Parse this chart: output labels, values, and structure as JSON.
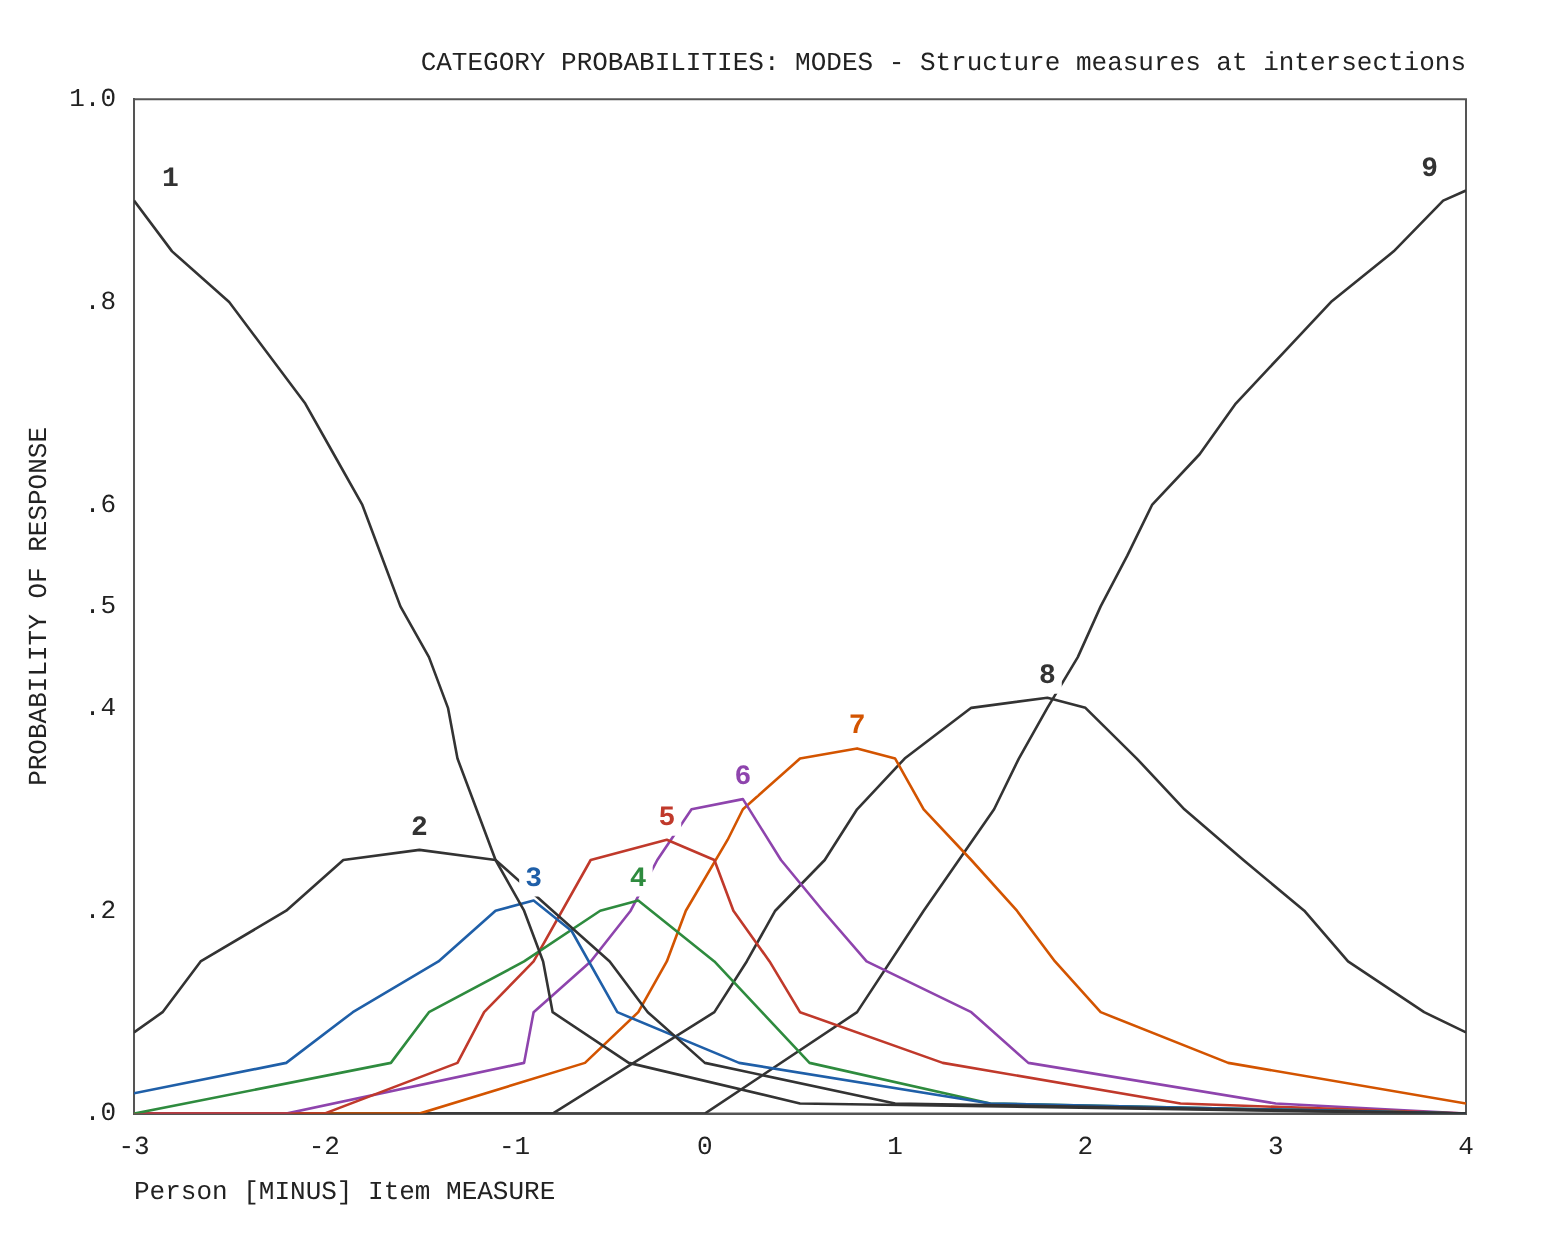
{
  "chart_data": {
    "type": "line",
    "title": "CATEGORY PROBABILITIES: MODES - Structure measures at intersections",
    "xlabel": "Person [MINUS] Item MEASURE",
    "ylabel": "PROBABILITY OF RESPONSE",
    "xlim": [
      -3,
      4
    ],
    "xticks": [
      -3,
      -2,
      -1,
      0,
      1,
      2,
      3,
      4
    ],
    "ylim": [
      0,
      1
    ],
    "yticks": [
      {
        "value": 0,
        "label": ".0"
      },
      {
        "value": 0.2,
        "label": ".2"
      },
      {
        "value": 0.4,
        "label": ".4"
      },
      {
        "value": 0.5,
        "label": ".5"
      },
      {
        "value": 0.6,
        "label": ".6"
      },
      {
        "value": 0.8,
        "label": ".8"
      },
      {
        "value": 1,
        "label": "1.0"
      }
    ],
    "grid": false,
    "legend": false,
    "marker": "none",
    "line_style": "solid",
    "series": [
      {
        "name": "1",
        "color": "#333333",
        "x": [
          -3,
          -2.8,
          -2.5,
          -2.3,
          -2.1,
          -1.95,
          -1.8,
          -1.7,
          -1.6,
          -1.45,
          -1.35,
          -1.3,
          -1.2,
          -1.1,
          -0.95,
          -0.85,
          -0.8,
          -0.4,
          0.5,
          4
        ],
        "values": [
          0.9,
          0.85,
          0.8,
          0.75,
          0.7,
          0.65,
          0.6,
          0.55,
          0.5,
          0.45,
          0.4,
          0.35,
          0.3,
          0.25,
          0.2,
          0.15,
          0.1,
          0.05,
          0.01,
          0
        ]
      },
      {
        "name": "2",
        "color": "#333333",
        "x": [
          -3,
          -2.85,
          -2.65,
          -2.2,
          -1.9,
          -1.5,
          -1.1,
          -0.8,
          -0.5,
          -0.3,
          0,
          1,
          4
        ],
        "values": [
          0.08,
          0.1,
          0.15,
          0.2,
          0.25,
          0.26,
          0.25,
          0.2,
          0.15,
          0.1,
          0.05,
          0.01,
          0
        ]
      },
      {
        "name": "3",
        "color": "#1f5fa8",
        "x": [
          -3,
          -2.2,
          -1.85,
          -1.4,
          -1.1,
          -0.9,
          -0.7,
          -0.46,
          0.18,
          1.5,
          4
        ],
        "values": [
          0.02,
          0.05,
          0.1,
          0.15,
          0.2,
          0.21,
          0.18,
          0.1,
          0.05,
          0.01,
          0
        ]
      },
      {
        "name": "4",
        "color": "#2e8b3e",
        "x": [
          -3,
          -1.65,
          -1.45,
          -0.95,
          -0.55,
          -0.35,
          0.05,
          0.3,
          0.55,
          1.5,
          4
        ],
        "values": [
          0,
          0.05,
          0.1,
          0.15,
          0.2,
          0.21,
          0.15,
          0.1,
          0.05,
          0.01,
          0
        ]
      },
      {
        "name": "5",
        "color": "#c0392b",
        "x": [
          -3,
          -2,
          -1.3,
          -1.16,
          -0.9,
          -0.6,
          -0.2,
          0.05,
          0.15,
          0.34,
          0.5,
          1.25,
          2.5,
          4
        ],
        "values": [
          0,
          0,
          0.05,
          0.1,
          0.15,
          0.25,
          0.27,
          0.25,
          0.2,
          0.15,
          0.1,
          0.05,
          0.01,
          0
        ]
      },
      {
        "name": "6",
        "color": "#8e44ad",
        "x": [
          -3,
          -2.2,
          -0.95,
          -0.9,
          -0.6,
          -0.39,
          -0.25,
          -0.07,
          0.2,
          0.4,
          0.62,
          0.85,
          1.4,
          1.7,
          3,
          4
        ],
        "values": [
          0,
          0,
          0.05,
          0.1,
          0.15,
          0.2,
          0.25,
          0.3,
          0.31,
          0.25,
          0.2,
          0.15,
          0.1,
          0.05,
          0.01,
          0
        ]
      },
      {
        "name": "7",
        "color": "#d35400",
        "x": [
          -3,
          -1.5,
          -0.63,
          -0.35,
          -0.2,
          -0.1,
          0.12,
          0.2,
          0.5,
          0.8,
          1,
          1.15,
          1.4,
          1.64,
          1.84,
          2.08,
          2.75,
          4
        ],
        "values": [
          0,
          0,
          0.05,
          0.1,
          0.15,
          0.2,
          0.27,
          0.3,
          0.35,
          0.36,
          0.35,
          0.3,
          0.25,
          0.2,
          0.15,
          0.1,
          0.05,
          0.01
        ]
      },
      {
        "name": "8",
        "color": "#333333",
        "x": [
          -3,
          -0.8,
          0.05,
          0.22,
          0.37,
          0.63,
          0.8,
          1.05,
          1.4,
          1.8,
          2,
          2.27,
          2.52,
          2.83,
          3.15,
          3.38,
          3.78,
          4
        ],
        "values": [
          0,
          0,
          0.1,
          0.15,
          0.2,
          0.25,
          0.3,
          0.35,
          0.4,
          0.41,
          0.4,
          0.35,
          0.3,
          0.25,
          0.2,
          0.15,
          0.1,
          0.08
        ]
      },
      {
        "name": "9",
        "color": "#333333",
        "x": [
          -3,
          0,
          0.8,
          1.15,
          1.52,
          1.65,
          1.8,
          1.96,
          2.08,
          2.22,
          2.35,
          2.6,
          2.79,
          3.04,
          3.29,
          3.62,
          3.88,
          4
        ],
        "values": [
          0,
          0,
          0.1,
          0.2,
          0.3,
          0.35,
          0.4,
          0.45,
          0.5,
          0.55,
          0.6,
          0.65,
          0.7,
          0.75,
          0.8,
          0.85,
          0.9,
          0.91
        ]
      }
    ]
  }
}
